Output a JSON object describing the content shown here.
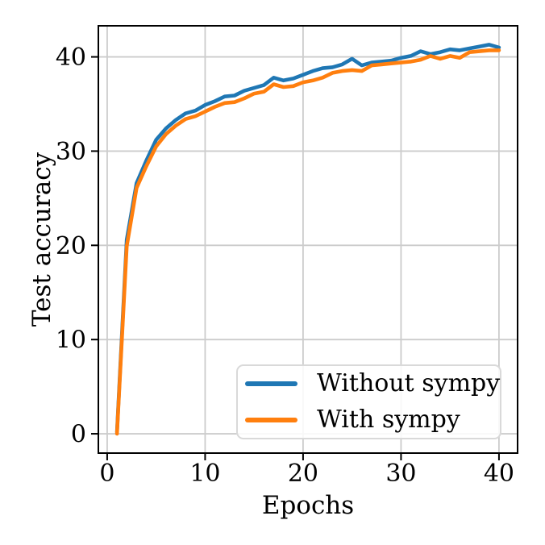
{
  "chart_data": {
    "type": "line",
    "title": "",
    "xlabel": "Epochs",
    "ylabel": "Test accuracy",
    "x": [
      1,
      2,
      3,
      4,
      5,
      6,
      7,
      8,
      9,
      10,
      11,
      12,
      13,
      14,
      15,
      16,
      17,
      18,
      19,
      20,
      21,
      22,
      23,
      24,
      25,
      26,
      27,
      28,
      29,
      30,
      31,
      32,
      33,
      34,
      35,
      36,
      37,
      38,
      39,
      40
    ],
    "series": [
      {
        "name": "Without sympy",
        "color": "#1f77b4",
        "values": [
          0.2,
          20.6,
          26.6,
          29.0,
          31.2,
          32.4,
          33.3,
          34.0,
          34.3,
          34.9,
          35.3,
          35.8,
          35.9,
          36.4,
          36.7,
          37.0,
          37.8,
          37.5,
          37.7,
          38.1,
          38.5,
          38.8,
          38.9,
          39.2,
          39.8,
          39.1,
          39.4,
          39.5,
          39.6,
          39.9,
          40.1,
          40.6,
          40.3,
          40.5,
          40.8,
          40.7,
          40.9,
          41.1,
          41.3,
          41.0
        ]
      },
      {
        "name": "With sympy",
        "color": "#ff7f0e",
        "values": [
          0.0,
          19.9,
          26.1,
          28.4,
          30.5,
          31.8,
          32.7,
          33.4,
          33.7,
          34.2,
          34.7,
          35.1,
          35.2,
          35.6,
          36.1,
          36.3,
          37.1,
          36.8,
          36.9,
          37.3,
          37.5,
          37.8,
          38.3,
          38.5,
          38.6,
          38.5,
          39.1,
          39.2,
          39.3,
          39.4,
          39.5,
          39.7,
          40.1,
          39.8,
          40.1,
          39.9,
          40.5,
          40.6,
          40.7,
          40.7
        ]
      }
    ],
    "xlim": [
      -0.9,
      41.9
    ],
    "ylim": [
      -2.05,
      43.3
    ],
    "xticks": [
      0,
      10,
      20,
      30,
      40
    ],
    "yticks": [
      0,
      10,
      20,
      30,
      40
    ],
    "grid": true,
    "grid_color": "#cccccc",
    "spine_color": "#000000",
    "line_width": 4.6,
    "legend_position": "lower right"
  }
}
